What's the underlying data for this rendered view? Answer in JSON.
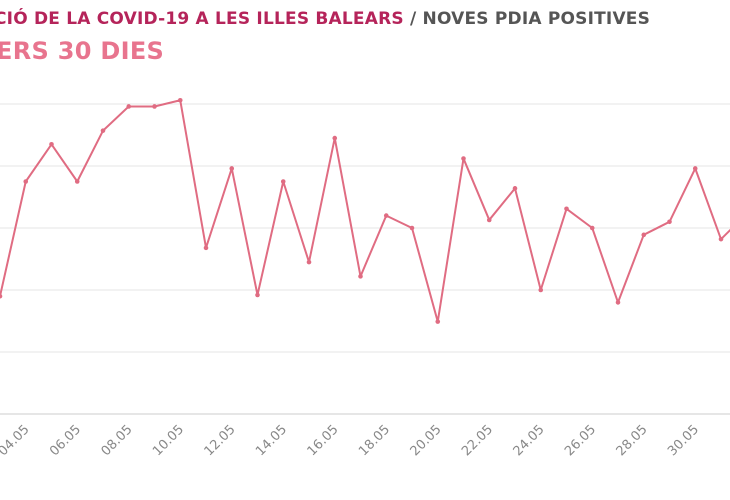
{
  "header": {
    "title_main": "CIÓ DE LA COVID-19 A LES ILLES BALEARS",
    "title_sep": "/",
    "title_sub": "NOVES PDIA POSITIVES",
    "subtitle": "ERS 30 DIES"
  },
  "colors": {
    "title_main": "#b5245a",
    "title_sub": "#555555",
    "subtitle": "#e8748e",
    "line": "#e06c82",
    "grid": "#e6e6e6",
    "axis": "#cccccc",
    "tick_label": "#888888"
  },
  "chart_data": {
    "type": "line",
    "title": "",
    "xlabel": "",
    "ylabel": "",
    "grid": true,
    "legend": "none",
    "x_tick_labels": [
      "04.05",
      "06.05",
      "08.05",
      "10.05",
      "12.05",
      "14.05",
      "16.05",
      "18.05",
      "20.05",
      "22.05",
      "24.05",
      "26.05",
      "28.05",
      "30.05"
    ],
    "x": [
      "03.05",
      "04.05",
      "05.05",
      "06.05",
      "07.05",
      "08.05",
      "09.05",
      "10.05",
      "11.05",
      "12.05",
      "13.05",
      "14.05",
      "15.05",
      "16.05",
      "17.05",
      "18.05",
      "19.05",
      "20.05",
      "21.05",
      "22.05",
      "23.05",
      "24.05",
      "25.05",
      "26.05",
      "27.05",
      "28.05",
      "29.05",
      "30.05",
      "31.05",
      "01.06"
    ],
    "series": [
      {
        "values": [
          19.0,
          37.5,
          43.5,
          37.5,
          45.7,
          49.6,
          49.6,
          50.6,
          26.8,
          39.6,
          19.2,
          37.5,
          24.5,
          44.5,
          22.2,
          32.0,
          30.0,
          14.9,
          41.2,
          31.3,
          36.4,
          20.0,
          33.1,
          30.0,
          18.0,
          28.9,
          31.0,
          39.6,
          28.2,
          32.3
        ]
      }
    ]
  }
}
